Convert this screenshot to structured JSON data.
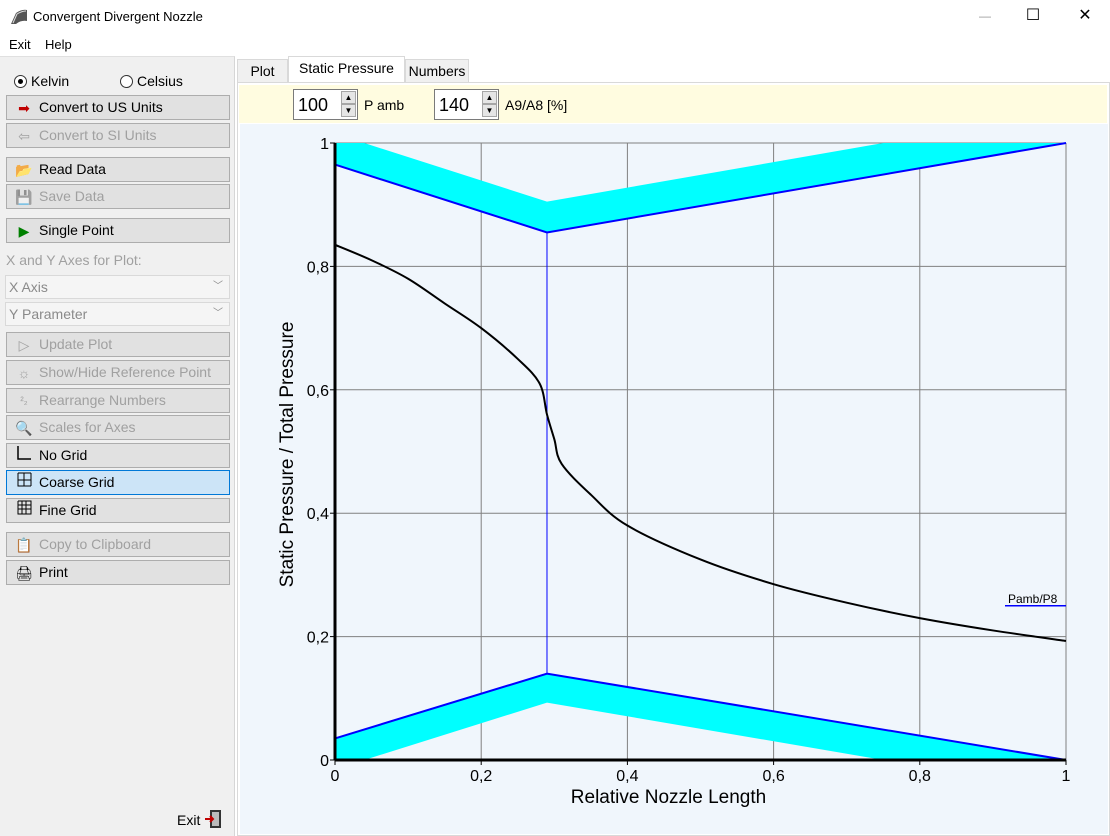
{
  "window": {
    "title": "Convergent Divergent Nozzle"
  },
  "window_buttons": {
    "minimize": "—",
    "maximize": "☐",
    "close": "✕"
  },
  "menu": {
    "exit": "Exit",
    "help": "Help"
  },
  "units": {
    "kelvin": "Kelvin",
    "celsius": "Celsius",
    "selected": "Kelvin"
  },
  "buttons": {
    "convert_us": "Convert to US Units",
    "convert_si": "Convert to SI Units",
    "read_data": "Read Data",
    "save_data": "Save Data",
    "single_point": "Single Point",
    "update_plot": "Update Plot",
    "show_hide_ref": "Show/Hide Reference Point",
    "rearrange": "Rearrange Numbers",
    "scales": "Scales for Axes",
    "no_grid": "No Grid",
    "coarse_grid": "Coarse Grid",
    "fine_grid": "Fine Grid",
    "copy_clipboard": "Copy to Clipboard",
    "print": "Print"
  },
  "axes_section": {
    "label": "X and Y Axes for Plot:",
    "x_axis": "X Axis",
    "y_param": "Y Parameter"
  },
  "footer": {
    "exit": "Exit"
  },
  "tabs": {
    "plot": "Plot",
    "static_pressure": "Static Pressure",
    "numbers": "Numbers",
    "active": "Static Pressure"
  },
  "inputs": {
    "p_amb_value": "100",
    "p_amb_label": "P amb",
    "area_ratio_value": "140",
    "area_ratio_label": "A9/A8 [%]"
  },
  "colors": {
    "nozzle_fill": "#00ffff",
    "nozzle_wall": "#0000ff",
    "pressure_curve": "#000000",
    "grid": "#808080",
    "plot_bg": "#f0f6fc",
    "toolbar_bg": "#fffce0"
  },
  "chart_data": {
    "type": "line",
    "xlabel": "Relative Nozzle Length",
    "ylabel": "Static Pressure / Total Pressure",
    "xlim": [
      0,
      1
    ],
    "ylim": [
      0,
      1
    ],
    "x_ticks": [
      "0",
      "0,2",
      "0,4",
      "0,6",
      "0,8",
      "1"
    ],
    "y_ticks": [
      "0",
      "0,2",
      "0,4",
      "0,6",
      "0,8",
      "1"
    ],
    "grid": true,
    "series": [
      {
        "name": "",
        "x": [
          0,
          0.05,
          0.1,
          0.15,
          0.2,
          0.25,
          0.28,
          0.29,
          0.3,
          0.31,
          0.35,
          0.4,
          0.5,
          0.6,
          0.7,
          0.8,
          0.9,
          1.0
        ],
        "y": [
          0.835,
          0.81,
          0.78,
          0.74,
          0.7,
          0.65,
          0.61,
          0.56,
          0.52,
          0.48,
          0.43,
          0.38,
          0.325,
          0.285,
          0.255,
          0.23,
          0.21,
          0.193
        ]
      }
    ],
    "nozzle_walls": {
      "upper_outer": {
        "x": [
          0.04,
          0.29,
          0.75,
          1.0
        ],
        "y": [
          1.0,
          0.905,
          1.0,
          1.0
        ]
      },
      "upper_inner": {
        "x": [
          0,
          0.29,
          1.0
        ],
        "y": [
          0.965,
          0.855,
          1.0
        ]
      },
      "lower_inner": {
        "x": [
          0,
          0.29,
          1.0
        ],
        "y": [
          0.035,
          0.14,
          0.0
        ]
      },
      "lower_outer": {
        "x": [
          0.04,
          0.29,
          0.75
        ],
        "y": [
          0.0,
          0.093,
          0.0
        ]
      },
      "throat_x": 0.29
    },
    "annotations": [
      {
        "text": "Pamb/P8",
        "y": 0.25
      }
    ]
  }
}
